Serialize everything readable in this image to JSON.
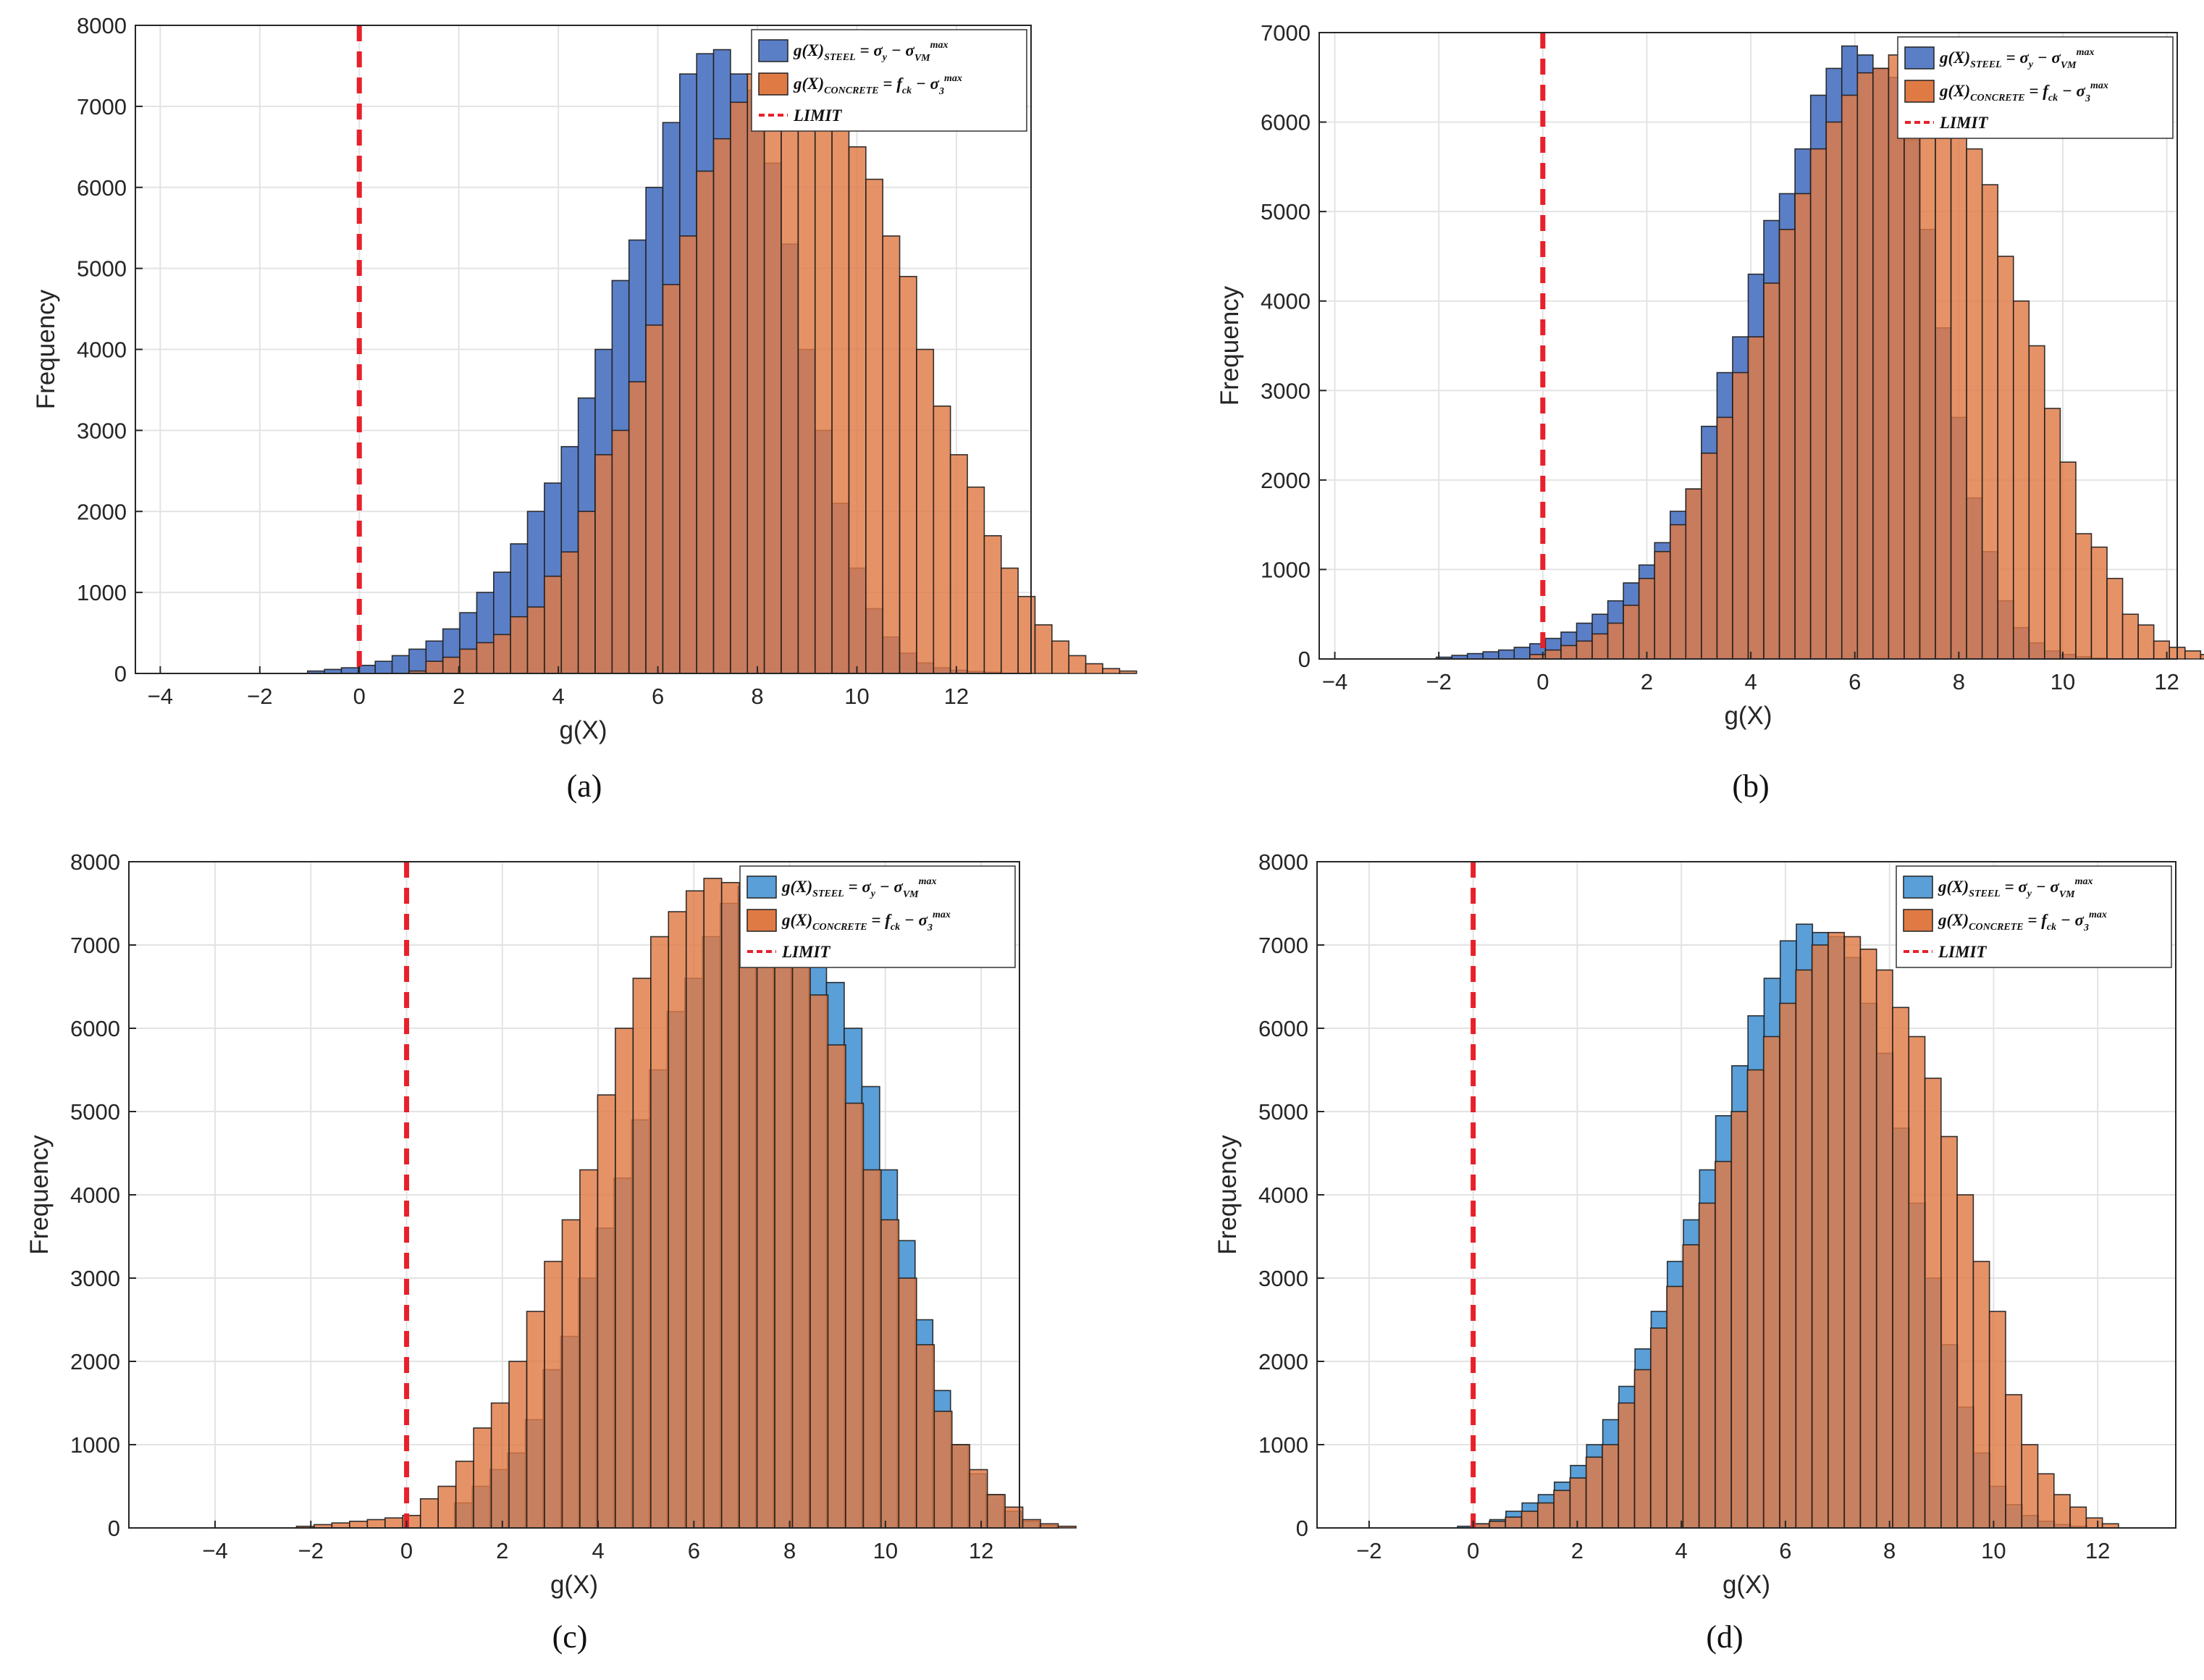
{
  "colors": {
    "steel_fill_a": "#5b7fc6",
    "steel_fill_c": "#5a9fd8",
    "concrete_fill": "#e07a45",
    "limit_line": "#e8202a",
    "grid": "#e3e3e3",
    "bar_edge": "#1e1e1e"
  },
  "chart_data": [
    {
      "id": "a",
      "type": "bar",
      "caption": "(a)",
      "xlabel": "g(X)",
      "ylabel": "Frequency",
      "xlim": [
        -4.5,
        13.5
      ],
      "ylim": [
        0,
        8000
      ],
      "xticks": [
        -4,
        -2,
        0,
        2,
        4,
        6,
        8,
        10,
        12
      ],
      "yticks": [
        0,
        1000,
        2000,
        3000,
        4000,
        5000,
        6000,
        7000,
        8000
      ],
      "bin_width": 0.34,
      "limit_x": 0,
      "legend": {
        "position": "top-right",
        "steel": "g(X)_STEEL = σ_y − σ_VM^max",
        "concrete": "g(X)_CONCRETE = f_ck − σ_3^max",
        "limit": "LIMIT"
      },
      "series": [
        {
          "name": "steel",
          "start": -1.04,
          "values": [
            30,
            50,
            70,
            100,
            150,
            220,
            300,
            400,
            550,
            750,
            1000,
            1250,
            1600,
            2000,
            2350,
            2800,
            3400,
            4000,
            4850,
            5350,
            6000,
            6800,
            7400,
            7650,
            7700,
            7400,
            7200,
            6300,
            5300,
            4000,
            3000,
            2100,
            1300,
            800,
            450,
            250,
            130,
            70,
            40,
            25,
            15
          ]
        },
        {
          "name": "concrete",
          "start": 1.0,
          "values": [
            30,
            150,
            200,
            300,
            380,
            480,
            700,
            820,
            1200,
            1500,
            2000,
            2700,
            3000,
            3600,
            4300,
            4800,
            5400,
            6200,
            6600,
            7050,
            7400,
            7550,
            7700,
            7750,
            7400,
            7000,
            6500,
            6100,
            5400,
            4900,
            4000,
            3300,
            2700,
            2300,
            1700,
            1300,
            950,
            600,
            400,
            220,
            120,
            60,
            30
          ]
        }
      ]
    },
    {
      "id": "b",
      "type": "bar",
      "caption": "(b)",
      "xlabel": "g(X)",
      "ylabel": "Frequency",
      "xlim": [
        -4.3,
        12.2
      ],
      "ylim": [
        0,
        7000
      ],
      "xticks": [
        -4,
        -2,
        0,
        2,
        4,
        6,
        8,
        10,
        12
      ],
      "yticks": [
        0,
        1000,
        2000,
        3000,
        4000,
        5000,
        6000,
        7000
      ],
      "bin_width": 0.3,
      "limit_x": 0,
      "legend": {
        "position": "top-right",
        "steel": "g(X)_STEEL = σ_y − σ_VM^max",
        "concrete": "g(X)_CONCRETE = f_ck − σ_3^max",
        "limit": "LIMIT"
      },
      "series": [
        {
          "name": "steel",
          "start": -2.05,
          "values": [
            20,
            40,
            60,
            80,
            100,
            130,
            170,
            230,
            300,
            400,
            500,
            650,
            850,
            1050,
            1300,
            1650,
            1900,
            2600,
            3200,
            3600,
            4300,
            4900,
            5200,
            5700,
            6300,
            6600,
            6850,
            6750,
            6600,
            6500,
            5800,
            4800,
            3700,
            2700,
            1800,
            1200,
            650,
            350,
            180,
            90,
            50,
            25,
            10
          ]
        },
        {
          "name": "concrete",
          "start": -0.25,
          "values": [
            50,
            100,
            150,
            200,
            280,
            400,
            600,
            900,
            1200,
            1500,
            1900,
            2300,
            2700,
            3200,
            3600,
            4200,
            4800,
            5200,
            5700,
            6000,
            6300,
            6550,
            6600,
            6750,
            6760,
            6700,
            6500,
            6300,
            5700,
            5300,
            4500,
            4000,
            3500,
            2800,
            2200,
            1400,
            1250,
            900,
            500,
            380,
            200,
            130,
            90,
            50,
            30
          ]
        }
      ]
    },
    {
      "id": "c",
      "type": "bar",
      "caption": "(c)",
      "xlabel": "g(X)",
      "ylabel": "Frequency",
      "xlim": [
        -5.8,
        12.8
      ],
      "ylim": [
        0,
        8000
      ],
      "xticks": [
        -4,
        -2,
        0,
        2,
        4,
        6,
        8,
        10,
        12
      ],
      "yticks": [
        0,
        1000,
        2000,
        3000,
        4000,
        5000,
        6000,
        7000,
        8000
      ],
      "bin_width": 0.37,
      "limit_x": 0,
      "legend": {
        "position": "top-right",
        "steel": "g(X)_STEEL = σ_y − σ_VM^max",
        "concrete": "g(X)_CONCRETE = f_ck − σ_3^max",
        "limit": "LIMIT"
      },
      "series": [
        {
          "name": "steel",
          "start": 1.0,
          "values": [
            300,
            500,
            700,
            900,
            1300,
            1900,
            2300,
            3000,
            3600,
            4200,
            4900,
            5500,
            6200,
            6600,
            7100,
            7500,
            7700,
            7750,
            7820,
            7700,
            7350,
            6550,
            6000,
            5300,
            4300,
            3450,
            2500,
            1650,
            1000,
            650,
            400,
            200,
            80,
            30
          ]
        },
        {
          "name": "concrete",
          "start": -2.3,
          "values": [
            20,
            40,
            60,
            80,
            100,
            120,
            150,
            350,
            500,
            800,
            1200,
            1500,
            2000,
            2600,
            3200,
            3700,
            4300,
            5200,
            6000,
            6600,
            7100,
            7400,
            7650,
            7800,
            7750,
            7600,
            7500,
            7100,
            6800,
            6400,
            5800,
            5100,
            4300,
            3700,
            3000,
            2200,
            1400,
            1000,
            700,
            400,
            250,
            100,
            50,
            20
          ]
        }
      ]
    },
    {
      "id": "d",
      "type": "bar",
      "caption": "(d)",
      "xlabel": "g(X)",
      "ylabel": "Frequency",
      "xlim": [
        -3.0,
        13.5
      ],
      "ylim": [
        0,
        8000
      ],
      "xticks": [
        -2,
        0,
        2,
        4,
        6,
        8,
        10,
        12
      ],
      "yticks": [
        0,
        1000,
        2000,
        3000,
        4000,
        5000,
        6000,
        7000,
        8000
      ],
      "bin_width": 0.31,
      "limit_x": 0,
      "legend": {
        "position": "top-right",
        "steel": "g(X)_STEEL = σ_y − σ_VM^max",
        "concrete": "g(X)_CONCRETE = f_ck − σ_3^max",
        "limit": "LIMIT"
      },
      "series": [
        {
          "name": "steel",
          "start": -0.3,
          "values": [
            20,
            50,
            100,
            200,
            300,
            400,
            550,
            750,
            1000,
            1300,
            1700,
            2150,
            2600,
            3200,
            3700,
            4300,
            4950,
            5550,
            6150,
            6600,
            7050,
            7250,
            7150,
            7100,
            6850,
            6300,
            5700,
            4800,
            3900,
            3000,
            2200,
            1450,
            900,
            500,
            280,
            150,
            80,
            40,
            20
          ]
        },
        {
          "name": "concrete",
          "start": 0.0,
          "values": [
            50,
            80,
            130,
            200,
            300,
            450,
            600,
            850,
            1000,
            1500,
            1900,
            2400,
            2900,
            3400,
            3900,
            4400,
            5000,
            5500,
            5900,
            6300,
            6700,
            7000,
            7150,
            7100,
            6950,
            6700,
            6250,
            5900,
            5400,
            4700,
            4000,
            3200,
            2600,
            1600,
            1000,
            650,
            400,
            250,
            120,
            50
          ]
        }
      ]
    }
  ]
}
